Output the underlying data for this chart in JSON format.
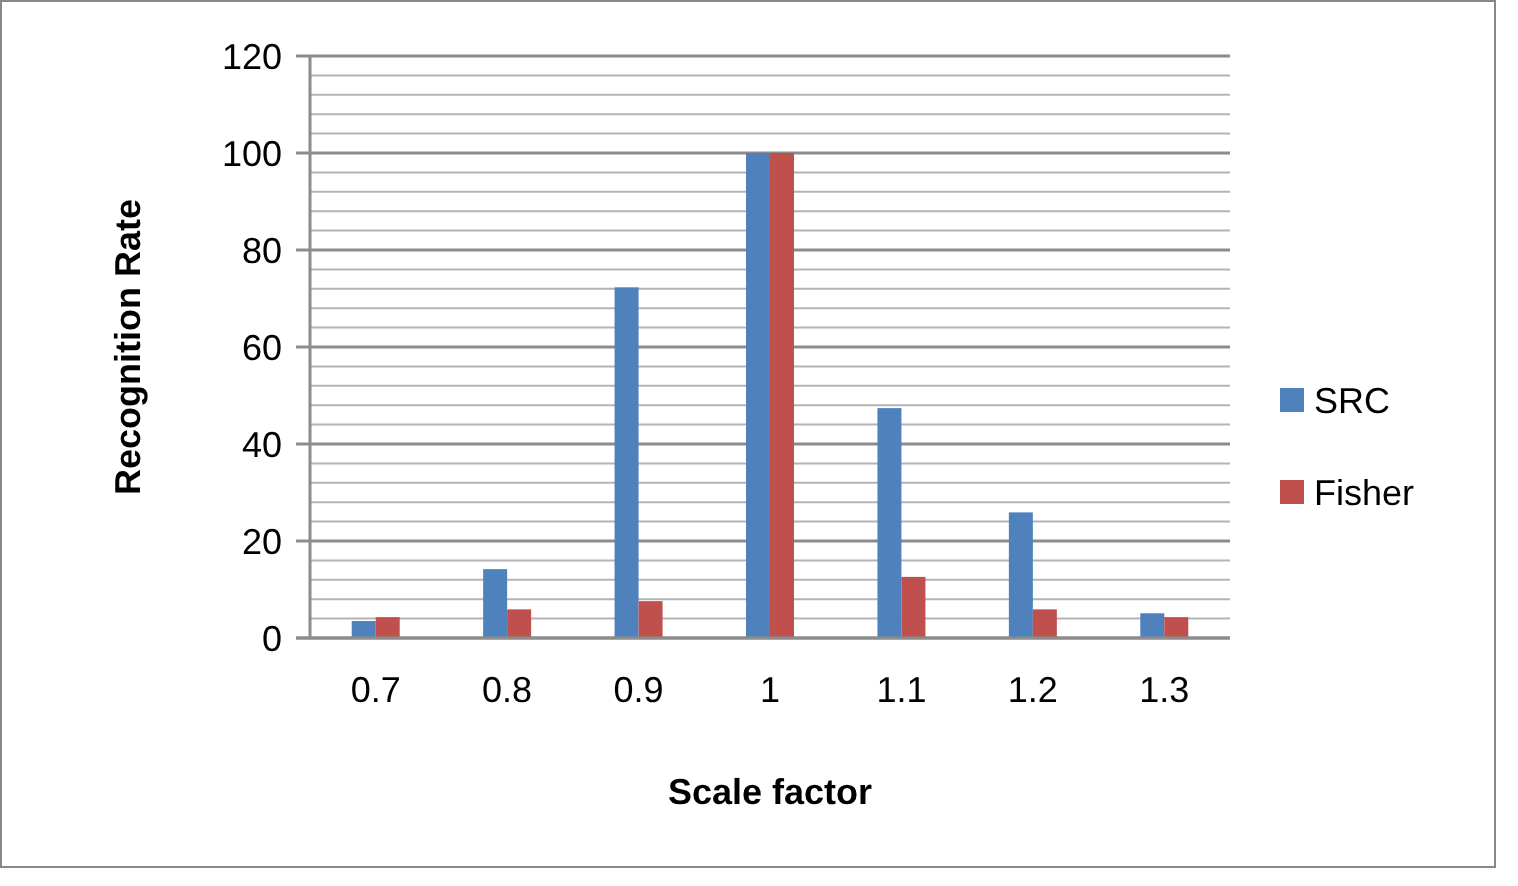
{
  "chart_data": {
    "type": "bar",
    "xlabel": "Scale factor",
    "ylabel": "Recognition Rate",
    "categories": [
      "0.7",
      "0.8",
      "0.9",
      "1",
      "1.1",
      "1.2",
      "1.3"
    ],
    "series": [
      {
        "name": "SRC",
        "color": "#4f81bd",
        "values": [
          3.5,
          14.2,
          72.3,
          100,
          47.4,
          25.9,
          5.1
        ]
      },
      {
        "name": "Fisher",
        "color": "#c0504d",
        "values": [
          4.3,
          5.9,
          7.6,
          100,
          12.6,
          5.9,
          4.3
        ]
      }
    ],
    "ylim": [
      0,
      120
    ],
    "yticks": [
      0,
      {
        "value": 4,
        "label": null
      },
      {
        "value": 8,
        "label": null
      },
      {
        "value": 12,
        "label": null
      },
      {
        "value": 16,
        "label": null
      },
      20,
      {
        "value": 24,
        "label": null
      },
      {
        "value": 28,
        "label": null
      },
      {
        "value": 32,
        "label": null
      },
      {
        "value": 36,
        "label": null
      },
      40,
      {
        "value": 44,
        "label": null
      },
      {
        "value": 48,
        "label": null
      },
      {
        "value": 52,
        "label": null
      },
      {
        "value": 56,
        "label": null
      },
      60,
      {
        "value": 64,
        "label": null
      },
      {
        "value": 68,
        "label": null
      },
      {
        "value": 72,
        "label": null
      },
      {
        "value": 76,
        "label": null
      },
      80,
      {
        "value": 84,
        "label": null
      },
      {
        "value": 88,
        "label": null
      },
      {
        "value": 92,
        "label": null
      },
      {
        "value": 96,
        "label": null
      },
      100,
      {
        "value": 104,
        "label": null
      },
      {
        "value": 108,
        "label": null
      },
      {
        "value": 112,
        "label": null
      },
      {
        "value": 116,
        "label": null
      },
      120
    ],
    "grid": "y",
    "legend": "right"
  }
}
